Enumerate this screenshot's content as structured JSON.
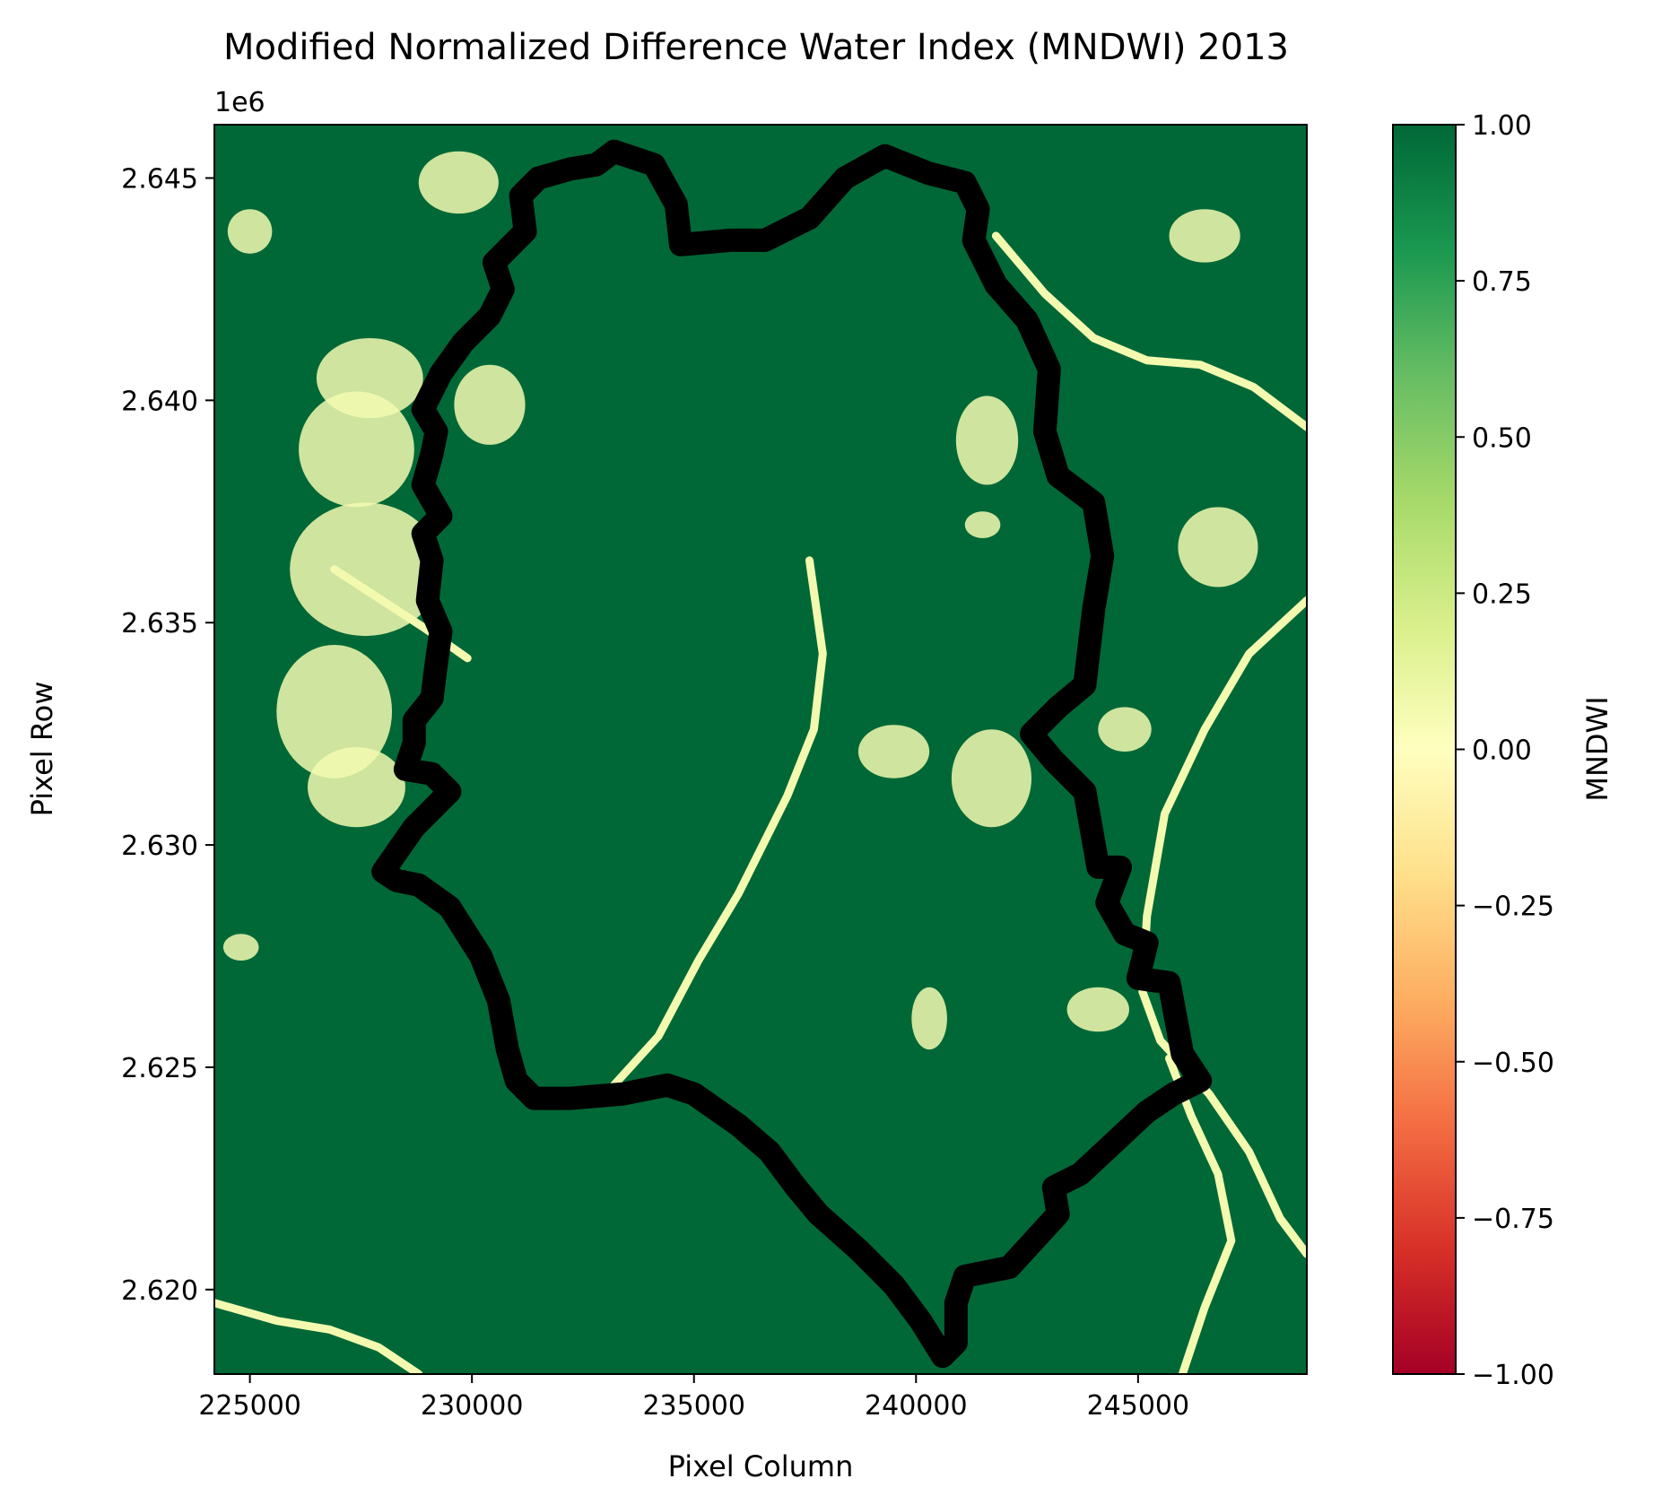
{
  "chart_data": {
    "type": "heatmap",
    "title": "Modified Normalized Difference Water Index (MNDWI) 2013",
    "xlabel": "Pixel Column",
    "ylabel": "Pixel Row",
    "y_offset_label": "1e6",
    "xlim": [
      224200,
      248800
    ],
    "ylim": [
      2618100,
      2646200
    ],
    "x_ticks": [
      {
        "value": 225000,
        "label": "225000"
      },
      {
        "value": 230000,
        "label": "230000"
      },
      {
        "value": 235000,
        "label": "235000"
      },
      {
        "value": 240000,
        "label": "240000"
      },
      {
        "value": 245000,
        "label": "245000"
      }
    ],
    "y_ticks": [
      {
        "value": 2620000,
        "label": "2.620"
      },
      {
        "value": 2625000,
        "label": "2.625"
      },
      {
        "value": 2630000,
        "label": "2.630"
      },
      {
        "value": 2635000,
        "label": "2.635"
      },
      {
        "value": 2640000,
        "label": "2.640"
      },
      {
        "value": 2645000,
        "label": "2.645"
      }
    ],
    "colorbar": {
      "label": "MNDWI",
      "colormap": "RdYlGn",
      "range": [
        -1.0,
        1.0
      ],
      "ticks": [
        {
          "value": 1.0,
          "label": "1.00"
        },
        {
          "value": 0.75,
          "label": "0.75"
        },
        {
          "value": 0.5,
          "label": "0.50"
        },
        {
          "value": 0.25,
          "label": "0.25"
        },
        {
          "value": 0.0,
          "label": "0.00"
        },
        {
          "value": -0.25,
          "label": "−0.25"
        },
        {
          "value": -0.5,
          "label": "−0.50"
        },
        {
          "value": -0.75,
          "label": "−0.75"
        },
        {
          "value": -1.0,
          "label": "−1.00"
        }
      ]
    },
    "raster": {
      "dominant_value": 1.0,
      "dominant_color": "#006837",
      "secondary_value": 0.05,
      "secondary_color": "#f3fab0"
    },
    "boundary_color": "#000000",
    "boundary": [
      [
        233200,
        2645600
      ],
      [
        234100,
        2645300
      ],
      [
        234600,
        2644400
      ],
      [
        234700,
        2643500
      ],
      [
        235800,
        2643600
      ],
      [
        236600,
        2643600
      ],
      [
        237600,
        2644100
      ],
      [
        238400,
        2645000
      ],
      [
        239300,
        2645500
      ],
      [
        240300,
        2645100
      ],
      [
        241100,
        2644900
      ],
      [
        241400,
        2644300
      ],
      [
        241300,
        2643600
      ],
      [
        241800,
        2642600
      ],
      [
        242500,
        2641800
      ],
      [
        243000,
        2640700
      ],
      [
        242900,
        2639300
      ],
      [
        243200,
        2638300
      ],
      [
        244000,
        2637700
      ],
      [
        244200,
        2636500
      ],
      [
        244000,
        2635300
      ],
      [
        243800,
        2633600
      ],
      [
        243200,
        2633100
      ],
      [
        242600,
        2632500
      ],
      [
        243100,
        2631900
      ],
      [
        243800,
        2631200
      ],
      [
        244100,
        2629500
      ],
      [
        244600,
        2629500
      ],
      [
        244300,
        2628700
      ],
      [
        244700,
        2628000
      ],
      [
        245200,
        2627800
      ],
      [
        245000,
        2627000
      ],
      [
        245700,
        2626900
      ],
      [
        246000,
        2625300
      ],
      [
        246400,
        2624700
      ],
      [
        245800,
        2624400
      ],
      [
        245200,
        2624000
      ],
      [
        243700,
        2622600
      ],
      [
        243100,
        2622300
      ],
      [
        243200,
        2621700
      ],
      [
        242100,
        2620500
      ],
      [
        241100,
        2620300
      ],
      [
        240900,
        2619700
      ],
      [
        240900,
        2618800
      ],
      [
        240600,
        2618500
      ],
      [
        240100,
        2619300
      ],
      [
        239500,
        2620100
      ],
      [
        238700,
        2620900
      ],
      [
        237800,
        2621700
      ],
      [
        237300,
        2622300
      ],
      [
        236700,
        2623100
      ],
      [
        236000,
        2623700
      ],
      [
        235000,
        2624400
      ],
      [
        234400,
        2624600
      ],
      [
        233400,
        2624400
      ],
      [
        232200,
        2624300
      ],
      [
        231400,
        2624300
      ],
      [
        231000,
        2624700
      ],
      [
        230800,
        2625400
      ],
      [
        230600,
        2626500
      ],
      [
        230200,
        2627500
      ],
      [
        229500,
        2628600
      ],
      [
        228800,
        2629100
      ],
      [
        228300,
        2629200
      ],
      [
        228000,
        2629400
      ],
      [
        228700,
        2630400
      ],
      [
        229500,
        2631200
      ],
      [
        229100,
        2631600
      ],
      [
        228500,
        2631700
      ],
      [
        228700,
        2632300
      ],
      [
        228700,
        2632800
      ],
      [
        229100,
        2633300
      ],
      [
        229200,
        2634100
      ],
      [
        229300,
        2634800
      ],
      [
        229000,
        2635500
      ],
      [
        229100,
        2636400
      ],
      [
        228900,
        2637000
      ],
      [
        229300,
        2637400
      ],
      [
        228900,
        2638100
      ],
      [
        229100,
        2638800
      ],
      [
        229200,
        2639300
      ],
      [
        228900,
        2639800
      ],
      [
        229300,
        2640600
      ],
      [
        229800,
        2641300
      ],
      [
        230400,
        2641900
      ],
      [
        230700,
        2642500
      ],
      [
        230500,
        2643100
      ],
      [
        230900,
        2643500
      ],
      [
        231200,
        2643800
      ],
      [
        231100,
        2644600
      ],
      [
        231500,
        2645000
      ],
      [
        232200,
        2645200
      ],
      [
        232800,
        2645300
      ],
      [
        233200,
        2645600
      ]
    ],
    "low_value_features": [
      {
        "shape": "patch",
        "x": 227700,
        "y": 2640500,
        "rx": 1200,
        "ry": 900
      },
      {
        "shape": "patch",
        "x": 227400,
        "y": 2638900,
        "rx": 1300,
        "ry": 1300
      },
      {
        "shape": "patch",
        "x": 227600,
        "y": 2636200,
        "rx": 1700,
        "ry": 1500
      },
      {
        "shape": "patch",
        "x": 226900,
        "y": 2633000,
        "rx": 1300,
        "ry": 1500
      },
      {
        "shape": "patch",
        "x": 227400,
        "y": 2631300,
        "rx": 1100,
        "ry": 900
      },
      {
        "shape": "patch",
        "x": 229700,
        "y": 2644900,
        "rx": 900,
        "ry": 700
      },
      {
        "shape": "patch",
        "x": 230400,
        "y": 2639900,
        "rx": 800,
        "ry": 900
      },
      {
        "shape": "patch",
        "x": 241600,
        "y": 2639100,
        "rx": 700,
        "ry": 1000
      },
      {
        "shape": "patch",
        "x": 241700,
        "y": 2631500,
        "rx": 900,
        "ry": 1100
      },
      {
        "shape": "patch",
        "x": 239500,
        "y": 2632100,
        "rx": 800,
        "ry": 600
      },
      {
        "shape": "patch",
        "x": 240300,
        "y": 2626100,
        "rx": 400,
        "ry": 700
      },
      {
        "shape": "patch",
        "x": 241500,
        "y": 2637200,
        "rx": 400,
        "ry": 300
      },
      {
        "shape": "patch",
        "x": 246500,
        "y": 2643700,
        "rx": 800,
        "ry": 600
      },
      {
        "shape": "patch",
        "x": 246800,
        "y": 2636700,
        "rx": 900,
        "ry": 900
      },
      {
        "shape": "patch",
        "x": 244700,
        "y": 2632600,
        "rx": 600,
        "ry": 500
      },
      {
        "shape": "patch",
        "x": 244100,
        "y": 2626300,
        "rx": 700,
        "ry": 500
      },
      {
        "shape": "patch",
        "x": 225000,
        "y": 2643800,
        "rx": 500,
        "ry": 500
      },
      {
        "shape": "patch",
        "x": 224800,
        "y": 2627700,
        "rx": 400,
        "ry": 300
      },
      {
        "shape": "river",
        "points": [
          [
            248800,
            2635500
          ],
          [
            247500,
            2634300
          ],
          [
            246500,
            2632600
          ],
          [
            245600,
            2630700
          ],
          [
            245200,
            2628400
          ],
          [
            245100,
            2626700
          ],
          [
            245500,
            2625600
          ],
          [
            246600,
            2624400
          ],
          [
            247500,
            2623100
          ],
          [
            248200,
            2621600
          ],
          [
            248800,
            2620800
          ]
        ]
      },
      {
        "shape": "river",
        "points": [
          [
            245700,
            2625200
          ],
          [
            246200,
            2623900
          ],
          [
            246800,
            2622600
          ],
          [
            247100,
            2621100
          ],
          [
            246500,
            2619600
          ],
          [
            246000,
            2618100
          ]
        ]
      },
      {
        "shape": "river",
        "points": [
          [
            224200,
            2619700
          ],
          [
            225600,
            2619300
          ],
          [
            226800,
            2619100
          ],
          [
            227900,
            2618700
          ],
          [
            228800,
            2618100
          ]
        ]
      },
      {
        "shape": "river",
        "points": [
          [
            241800,
            2643700
          ],
          [
            242900,
            2642400
          ],
          [
            244000,
            2641400
          ],
          [
            245200,
            2640900
          ],
          [
            246400,
            2640800
          ],
          [
            247600,
            2640300
          ],
          [
            248800,
            2639400
          ]
        ]
      },
      {
        "shape": "river",
        "points": [
          [
            233200,
            2624600
          ],
          [
            234200,
            2625700
          ],
          [
            235100,
            2627400
          ],
          [
            236000,
            2628900
          ],
          [
            237100,
            2631100
          ],
          [
            237700,
            2632600
          ],
          [
            237900,
            2634300
          ],
          [
            237600,
            2636400
          ]
        ]
      },
      {
        "shape": "river",
        "points": [
          [
            226900,
            2636200
          ],
          [
            228900,
            2634900
          ],
          [
            229900,
            2634200
          ]
        ]
      }
    ]
  }
}
